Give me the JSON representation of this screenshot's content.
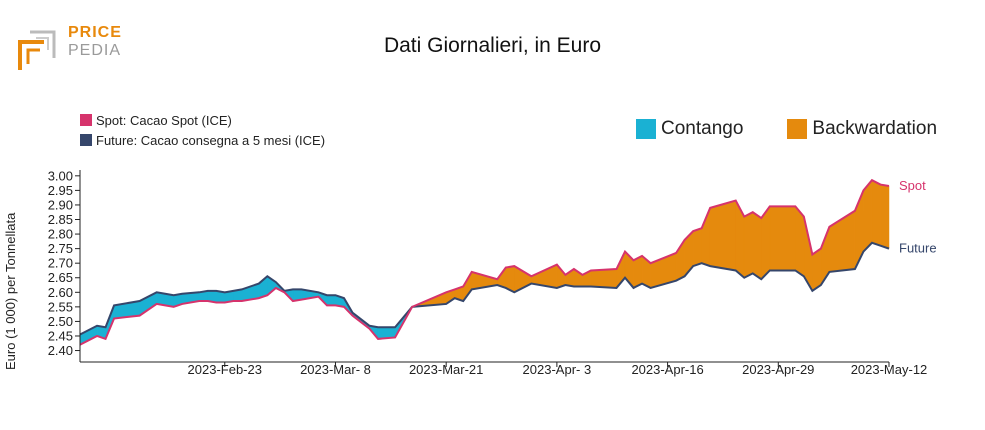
{
  "logo": {
    "top": "PRICE",
    "bottom": "PEDIA"
  },
  "title": "Dati Giornalieri, in Euro",
  "colors": {
    "spot": "#d6336c",
    "future": "#35466b",
    "contango": "#1ab1d3",
    "backwardation": "#e58a0d",
    "logo_orange": "#e8890c",
    "logo_gray": "#9a9a9a"
  },
  "legend": {
    "spot_label": "Spot: Cacao Spot (ICE)",
    "future_label": "Future: Cacao consegna a 5 mesi (ICE)",
    "contango_label": "Contango",
    "backwardation_label": "Backwardation"
  },
  "chart_data": {
    "type": "area",
    "ylabel": "Euro (1 000) per Tonnellata",
    "ylim": [
      2.395,
      3.02
    ],
    "yticks": [
      2.4,
      2.45,
      2.5,
      2.55,
      2.6,
      2.65,
      2.7,
      2.75,
      2.8,
      2.85,
      2.9,
      2.95,
      3.0
    ],
    "ytick_labels": [
      "2.40",
      "2.45",
      "2.50",
      "2.55",
      "2.60",
      "2.65",
      "2.70",
      "2.75",
      "2.80",
      "2.85",
      "2.90",
      "2.95",
      "3.00"
    ],
    "xlim": [
      "2023-02-06",
      "2023-05-12"
    ],
    "xticks": [
      "2023-02-23",
      "2023-03-08",
      "2023-03-21",
      "2023-04-03",
      "2023-04-16",
      "2023-04-29",
      "2023-05-12"
    ],
    "xtick_labels": [
      "2023-Feb-23",
      "2023-Mar- 8",
      "2023-Mar-21",
      "2023-Apr- 3",
      "2023-Apr-16",
      "2023-Apr-29",
      "2023-May-12"
    ],
    "end_labels": {
      "spot": "Spot",
      "future": "Future"
    },
    "x": [
      "2023-02-06",
      "2023-02-08",
      "2023-02-09",
      "2023-02-10",
      "2023-02-13",
      "2023-02-15",
      "2023-02-16",
      "2023-02-17",
      "2023-02-18",
      "2023-02-20",
      "2023-02-21",
      "2023-02-22",
      "2023-02-23",
      "2023-02-24",
      "2023-02-25",
      "2023-02-27",
      "2023-02-28",
      "2023-03-01",
      "2023-03-02",
      "2023-03-03",
      "2023-03-04",
      "2023-03-06",
      "2023-03-07",
      "2023-03-08",
      "2023-03-09",
      "2023-03-10",
      "2023-03-12",
      "2023-03-13",
      "2023-03-15",
      "2023-03-17",
      "2023-03-21",
      "2023-03-22",
      "2023-03-23",
      "2023-03-24",
      "2023-03-27",
      "2023-03-28",
      "2023-03-29",
      "2023-03-31",
      "2023-04-03",
      "2023-04-04",
      "2023-04-05",
      "2023-04-06",
      "2023-04-07",
      "2023-04-10",
      "2023-04-11",
      "2023-04-12",
      "2023-04-13",
      "2023-04-14",
      "2023-04-17",
      "2023-04-18",
      "2023-04-19",
      "2023-04-20",
      "2023-04-21",
      "2023-04-24",
      "2023-04-25",
      "2023-04-26",
      "2023-04-27",
      "2023-04-28",
      "2023-05-01",
      "2023-05-02",
      "2023-05-03",
      "2023-05-04",
      "2023-05-05",
      "2023-05-08",
      "2023-05-09",
      "2023-05-10",
      "2023-05-11",
      "2023-05-12"
    ],
    "series": [
      {
        "name": "Spot",
        "values": [
          2.42,
          2.45,
          2.44,
          2.51,
          2.52,
          2.56,
          2.555,
          2.55,
          2.56,
          2.57,
          2.57,
          2.565,
          2.565,
          2.57,
          2.57,
          2.58,
          2.59,
          2.615,
          2.6,
          2.57,
          2.575,
          2.585,
          2.555,
          2.555,
          2.55,
          2.52,
          2.475,
          2.44,
          2.445,
          2.55,
          2.6,
          2.61,
          2.62,
          2.67,
          2.645,
          2.685,
          2.69,
          2.655,
          2.695,
          2.66,
          2.68,
          2.66,
          2.675,
          2.68,
          2.74,
          2.71,
          2.725,
          2.7,
          2.735,
          2.78,
          2.81,
          2.82,
          2.89,
          2.915,
          2.86,
          2.875,
          2.855,
          2.895,
          2.895,
          2.86,
          2.73,
          2.75,
          2.825,
          2.88,
          2.95,
          2.985,
          2.97,
          2.965
        ]
      },
      {
        "name": "Future",
        "values": [
          2.455,
          2.485,
          2.48,
          2.555,
          2.57,
          2.6,
          2.595,
          2.59,
          2.595,
          2.6,
          2.605,
          2.605,
          2.6,
          2.605,
          2.61,
          2.63,
          2.655,
          2.635,
          2.605,
          2.61,
          2.61,
          2.6,
          2.59,
          2.59,
          2.58,
          2.53,
          2.485,
          2.48,
          2.48,
          2.55,
          2.56,
          2.58,
          2.57,
          2.61,
          2.625,
          2.615,
          2.6,
          2.63,
          2.615,
          2.625,
          2.62,
          2.62,
          2.62,
          2.615,
          2.65,
          2.615,
          2.63,
          2.615,
          2.64,
          2.655,
          2.69,
          2.7,
          2.69,
          2.675,
          2.65,
          2.665,
          2.645,
          2.675,
          2.675,
          2.655,
          2.605,
          2.625,
          2.67,
          2.68,
          2.74,
          2.77,
          2.76,
          2.75
        ]
      }
    ]
  }
}
